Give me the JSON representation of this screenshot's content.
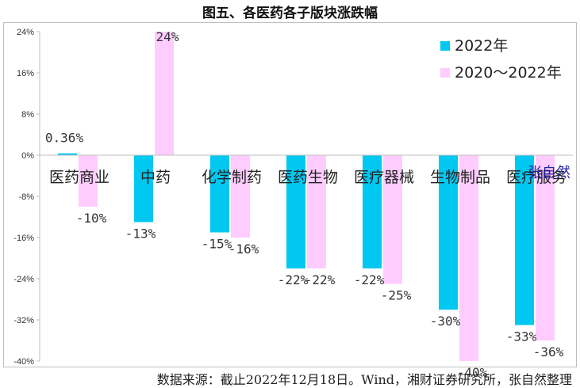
{
  "chart_data": {
    "type": "bar",
    "title": "图五、各医药各子版块涨跌幅",
    "categories": [
      "医药商业",
      "中药",
      "化学制药",
      "医药生物",
      "医疗器械",
      "生物制品",
      "医疗服务"
    ],
    "series": [
      {
        "name": "2022年",
        "color": "#00c8f0",
        "values": [
          0.36,
          -13,
          -15,
          -22,
          -22,
          -30,
          -33
        ],
        "labels": [
          "0.36%",
          "-13%",
          "-15%",
          "-22%",
          "-22%",
          "-30%",
          "-33%"
        ]
      },
      {
        "name": "2020～2022年",
        "color": "#ffccff",
        "values": [
          -10,
          24,
          -16,
          -22,
          -25,
          -40,
          -36
        ],
        "labels": [
          "-10%",
          "24%",
          "-16%",
          "-22%",
          "-25%",
          "-40%",
          "-36%"
        ]
      }
    ],
    "ylim": [
      -40,
      24
    ],
    "yticks": [
      24,
      16,
      8,
      0,
      -8,
      -16,
      -24,
      -32,
      -40
    ],
    "ytick_labels": [
      "24%",
      "16%",
      "8%",
      "0%",
      "-8%",
      "-16%",
      "-24%",
      "-32%",
      "-40%"
    ],
    "legend_position": "top-right",
    "xlabel": "",
    "ylabel": ""
  },
  "source": "数据来源：截止2022年12月18日。Wind，湘财证券研究所，张自然整理",
  "signature": "张自然"
}
